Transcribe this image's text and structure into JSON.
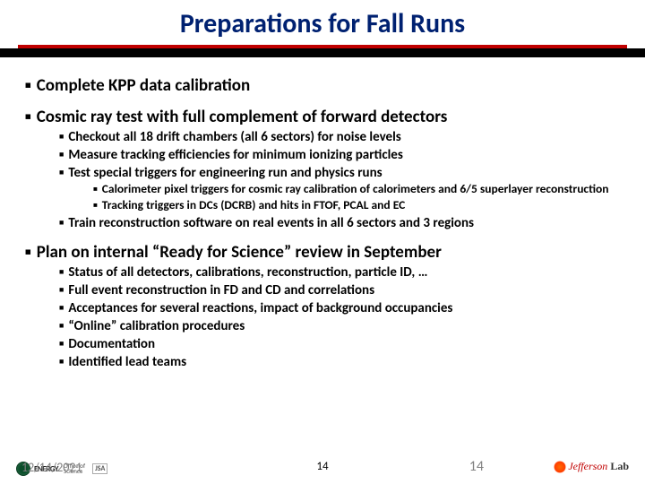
{
  "title": "Preparations for Fall Runs",
  "colors": {
    "title": "#002171",
    "redline": "#c00000",
    "black": "#000000",
    "gray": "#808080"
  },
  "bullets": {
    "l1_1": "Complete KPP data calibration",
    "l1_2": "Cosmic ray test with full complement of forward detectors",
    "l2_1": "Checkout all 18 drift chambers (all 6 sectors) for noise levels",
    "l2_2": "Measure tracking efficiencies for minimum ionizing particles",
    "l2_3": "Test special triggers for engineering run and physics runs",
    "l3_1": "Calorimeter pixel triggers for cosmic ray calibration of calorimeters and 6/5 superlayer reconstruction",
    "l3_2": "Tracking triggers in DCs (DCRB) and hits in FTOF,  PCAL and EC",
    "l2_4": "Train reconstruction software on real events in all 6 sectors and 3 regions",
    "l1_3": "Plan on internal “Ready for Science” review in September",
    "l2_5": "Status of all detectors, calibrations, reconstruction, particle ID, …",
    "l2_6": "Full event reconstruction in FD and CD and correlations",
    "l2_7": "Acceptances for several reactions, impact of background occupancies",
    "l2_8": "“Online” calibration procedures",
    "l2_9": "Documentation",
    "l2_10": "Identified lead teams"
  },
  "footer": {
    "date": "12/14/2021",
    "page_black": "14",
    "page_gray": "14",
    "energy": "ENERGY",
    "office1": "Office of",
    "office2": "Science",
    "jsa": "JSA",
    "jlab1": "Jefferson",
    "jlab2": "Lab"
  }
}
